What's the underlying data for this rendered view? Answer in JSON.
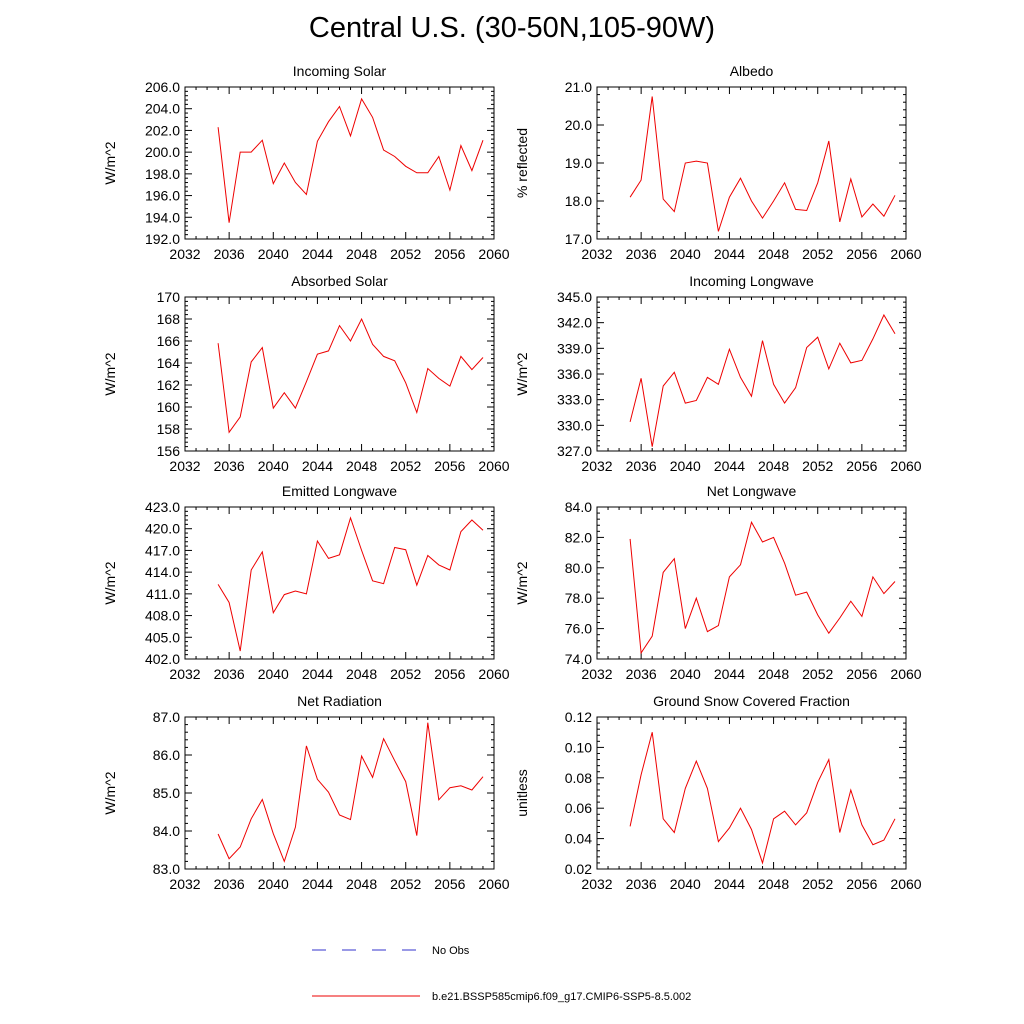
{
  "figure": {
    "title": "Central U.S. (30-50N,105-90W)"
  },
  "legend": {
    "items": [
      {
        "label": "No Obs",
        "color": "#3333cc",
        "dashed": true
      },
      {
        "label": "b.e21.BSSP585cmip6.f09_g17.CMIP6-SSP5-8.5.002",
        "color": "#ee0000",
        "dashed": false
      }
    ]
  },
  "chart_data": [
    {
      "type": "line",
      "title": "Incoming Solar",
      "ylabel": "W/m^2",
      "xlim": [
        2032,
        2060
      ],
      "ylim": [
        192,
        206
      ],
      "xticks": [
        2032,
        2036,
        2040,
        2044,
        2048,
        2052,
        2056,
        2060
      ],
      "yticks": [
        "192.0",
        "194.0",
        "196.0",
        "198.0",
        "200.0",
        "202.0",
        "204.0",
        "206.0"
      ],
      "color": "#ee0000",
      "x": [
        2035,
        2036,
        2037,
        2038,
        2039,
        2040,
        2041,
        2042,
        2043,
        2044,
        2045,
        2046,
        2047,
        2048,
        2049,
        2050,
        2051,
        2052,
        2053,
        2054,
        2055,
        2056,
        2057,
        2058,
        2059
      ],
      "y": [
        202.3,
        193.5,
        200.0,
        200.0,
        201.1,
        197.1,
        199.0,
        197.2,
        196.1,
        201.0,
        202.8,
        204.2,
        201.5,
        204.9,
        203.2,
        200.2,
        199.6,
        198.7,
        198.1,
        198.1,
        199.6,
        196.5,
        200.6,
        198.3,
        201.1
      ]
    },
    {
      "type": "line",
      "title": "Albedo",
      "ylabel": "% reflected",
      "xlim": [
        2032,
        2060
      ],
      "ylim": [
        17,
        21
      ],
      "xticks": [
        2032,
        2036,
        2040,
        2044,
        2048,
        2052,
        2056,
        2060
      ],
      "yticks": [
        "17.0",
        "18.0",
        "19.0",
        "20.0",
        "21.0"
      ],
      "color": "#ee0000",
      "x": [
        2035,
        2036,
        2037,
        2038,
        2039,
        2040,
        2041,
        2042,
        2043,
        2044,
        2045,
        2046,
        2047,
        2048,
        2049,
        2050,
        2051,
        2052,
        2053,
        2054,
        2055,
        2056,
        2057,
        2058,
        2059
      ],
      "y": [
        18.1,
        18.55,
        20.75,
        18.05,
        17.72,
        19.0,
        19.05,
        19.0,
        17.2,
        18.1,
        18.6,
        18.0,
        17.55,
        18.0,
        18.48,
        17.78,
        17.75,
        18.48,
        19.58,
        17.45,
        18.58,
        17.58,
        17.92,
        17.6,
        18.15
      ]
    },
    {
      "type": "line",
      "title": "Absorbed Solar",
      "ylabel": "W/m^2",
      "xlim": [
        2032,
        2060
      ],
      "ylim": [
        156,
        170
      ],
      "xticks": [
        2032,
        2036,
        2040,
        2044,
        2048,
        2052,
        2056,
        2060
      ],
      "yticks": [
        "156",
        "158",
        "160",
        "162",
        "164",
        "166",
        "168",
        "170"
      ],
      "color": "#ee0000",
      "x": [
        2035,
        2036,
        2037,
        2038,
        2039,
        2040,
        2041,
        2042,
        2043,
        2044,
        2045,
        2046,
        2047,
        2048,
        2049,
        2050,
        2051,
        2052,
        2053,
        2054,
        2055,
        2056,
        2057,
        2058,
        2059
      ],
      "y": [
        165.8,
        157.7,
        159.1,
        164.1,
        165.4,
        159.9,
        161.3,
        159.9,
        162.3,
        164.8,
        165.1,
        167.4,
        166.0,
        168.0,
        165.7,
        164.6,
        164.2,
        162.2,
        159.5,
        163.5,
        162.6,
        161.9,
        164.6,
        163.4,
        164.5
      ]
    },
    {
      "type": "line",
      "title": "Incoming Longwave",
      "ylabel": "W/m^2",
      "xlim": [
        2032,
        2060
      ],
      "ylim": [
        327,
        345
      ],
      "xticks": [
        2032,
        2036,
        2040,
        2044,
        2048,
        2052,
        2056,
        2060
      ],
      "yticks": [
        "327.0",
        "330.0",
        "333.0",
        "336.0",
        "339.0",
        "342.0",
        "345.0"
      ],
      "color": "#ee0000",
      "x": [
        2035,
        2036,
        2037,
        2038,
        2039,
        2040,
        2041,
        2042,
        2043,
        2044,
        2045,
        2046,
        2047,
        2048,
        2049,
        2050,
        2051,
        2052,
        2053,
        2054,
        2055,
        2056,
        2057,
        2058,
        2059
      ],
      "y": [
        330.4,
        335.5,
        327.5,
        334.6,
        336.2,
        332.6,
        332.9,
        335.6,
        334.8,
        338.9,
        335.6,
        333.4,
        339.9,
        334.8,
        332.6,
        334.4,
        339.1,
        340.3,
        336.6,
        339.6,
        337.3,
        337.6,
        340.1,
        342.9,
        340.7
      ]
    },
    {
      "type": "line",
      "title": "Emitted Longwave",
      "ylabel": "W/m^2",
      "xlim": [
        2032,
        2060
      ],
      "ylim": [
        402,
        423
      ],
      "xticks": [
        2032,
        2036,
        2040,
        2044,
        2048,
        2052,
        2056,
        2060
      ],
      "yticks": [
        "402.0",
        "405.0",
        "408.0",
        "411.0",
        "414.0",
        "417.0",
        "420.0",
        "423.0"
      ],
      "color": "#ee0000",
      "x": [
        2035,
        2036,
        2037,
        2038,
        2039,
        2040,
        2041,
        2042,
        2043,
        2044,
        2045,
        2046,
        2047,
        2048,
        2049,
        2050,
        2051,
        2052,
        2053,
        2054,
        2055,
        2056,
        2057,
        2058,
        2059
      ],
      "y": [
        412.3,
        409.8,
        403.1,
        414.3,
        416.8,
        408.4,
        410.9,
        411.4,
        411.0,
        418.3,
        415.9,
        416.4,
        421.5,
        417.0,
        412.8,
        412.4,
        417.4,
        417.1,
        412.2,
        416.3,
        415.0,
        414.3,
        419.6,
        421.2,
        419.8
      ]
    },
    {
      "type": "line",
      "title": "Net Longwave",
      "ylabel": "W/m^2",
      "xlim": [
        2032,
        2060
      ],
      "ylim": [
        74,
        84
      ],
      "xticks": [
        2032,
        2036,
        2040,
        2044,
        2048,
        2052,
        2056,
        2060
      ],
      "yticks": [
        "74.0",
        "76.0",
        "78.0",
        "80.0",
        "82.0",
        "84.0"
      ],
      "color": "#ee0000",
      "x": [
        2035,
        2036,
        2037,
        2038,
        2039,
        2040,
        2041,
        2042,
        2043,
        2044,
        2045,
        2046,
        2047,
        2048,
        2049,
        2050,
        2051,
        2052,
        2053,
        2054,
        2055,
        2056,
        2057,
        2058,
        2059
      ],
      "y": [
        81.9,
        74.4,
        75.5,
        79.7,
        80.6,
        76.0,
        78.0,
        75.8,
        76.2,
        79.4,
        80.2,
        83.0,
        81.7,
        82.0,
        80.3,
        78.2,
        78.4,
        76.9,
        75.7,
        76.7,
        77.8,
        76.8,
        79.4,
        78.3,
        79.1
      ]
    },
    {
      "type": "line",
      "title": "Net Radiation",
      "ylabel": "W/m^2",
      "xlim": [
        2032,
        2060
      ],
      "ylim": [
        83,
        87
      ],
      "xticks": [
        2032,
        2036,
        2040,
        2044,
        2048,
        2052,
        2056,
        2060
      ],
      "yticks": [
        "83.0",
        "84.0",
        "85.0",
        "86.0",
        "87.0"
      ],
      "color": "#ee0000",
      "x": [
        2035,
        2036,
        2037,
        2038,
        2039,
        2040,
        2041,
        2042,
        2043,
        2044,
        2045,
        2046,
        2047,
        2048,
        2049,
        2050,
        2051,
        2052,
        2053,
        2054,
        2055,
        2056,
        2057,
        2058,
        2059
      ],
      "y": [
        83.92,
        83.27,
        83.58,
        84.32,
        84.83,
        83.93,
        83.2,
        84.1,
        86.24,
        85.36,
        85.02,
        84.42,
        84.3,
        85.97,
        85.41,
        86.43,
        85.85,
        85.3,
        83.88,
        86.85,
        84.82,
        85.14,
        85.19,
        85.08,
        85.43
      ]
    },
    {
      "type": "line",
      "title": "Ground Snow Covered Fraction",
      "ylabel": "unitless",
      "xlim": [
        2032,
        2060
      ],
      "ylim": [
        0.02,
        0.12
      ],
      "xticks": [
        2032,
        2036,
        2040,
        2044,
        2048,
        2052,
        2056,
        2060
      ],
      "yticks": [
        "0.02",
        "0.04",
        "0.06",
        "0.08",
        "0.10",
        "0.12"
      ],
      "color": "#ee0000",
      "x": [
        2035,
        2036,
        2037,
        2038,
        2039,
        2040,
        2041,
        2042,
        2043,
        2044,
        2045,
        2046,
        2047,
        2048,
        2049,
        2050,
        2051,
        2052,
        2053,
        2054,
        2055,
        2056,
        2057,
        2058,
        2059
      ],
      "y": [
        0.048,
        0.082,
        0.11,
        0.053,
        0.044,
        0.073,
        0.091,
        0.073,
        0.038,
        0.047,
        0.06,
        0.046,
        0.024,
        0.053,
        0.058,
        0.049,
        0.057,
        0.077,
        0.092,
        0.044,
        0.072,
        0.049,
        0.036,
        0.039,
        0.053
      ]
    }
  ]
}
